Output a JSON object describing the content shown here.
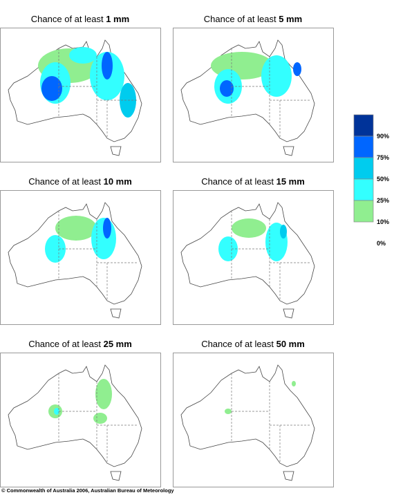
{
  "panels": [
    {
      "prefix": "Chance of at least",
      "amount": "1 mm"
    },
    {
      "prefix": "Chance of at least",
      "amount": "5 mm"
    },
    {
      "prefix": "Chance of at least",
      "amount": "10 mm"
    },
    {
      "prefix": "Chance of at least",
      "amount": "15 mm"
    },
    {
      "prefix": "Chance of at least",
      "amount": "25 mm"
    },
    {
      "prefix": "Chance of at least",
      "amount": "50 mm"
    }
  ],
  "legend": [
    {
      "label": "90%",
      "color": "#003399"
    },
    {
      "label": "75%",
      "color": "#0066ff"
    },
    {
      "label": "50%",
      "color": "#00ccee"
    },
    {
      "label": "25%",
      "color": "#33ffff"
    },
    {
      "label": "10%",
      "color": "#90ee90"
    },
    {
      "label": "0%",
      "color": "#ffffff"
    }
  ],
  "copyright": "© Commonwealth of Australia 2006, Australian Bureau of Meteorology"
}
